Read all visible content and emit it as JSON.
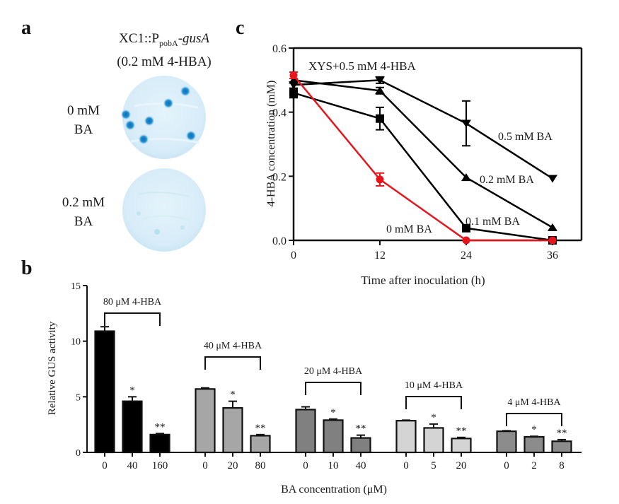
{
  "figure": {
    "panel_labels": {
      "a": "a",
      "b": "b",
      "c": "c"
    }
  },
  "panel_a": {
    "title_prefix": "XC1::P",
    "title_subscript": "pobA",
    "title_dash": "-",
    "title_gene": "gusA",
    "title_line2": "(0.2 mM 4-HBA)",
    "plates": [
      {
        "label_line1": "0 mM",
        "label_line2": "BA",
        "blue_colonies": 7
      },
      {
        "label_line1": "0.2 mM",
        "label_line2": "BA",
        "blue_colonies": 0
      }
    ],
    "colors": {
      "plate": "#d9eef8",
      "colony": "#1e8fd0"
    }
  },
  "chart_data": [
    {
      "id": "panel_b",
      "type": "bar",
      "title": "",
      "xlabel": "BA concentration (μM)",
      "ylabel": "Relative GUS activity",
      "ylim": [
        0,
        15
      ],
      "yticks": [
        0,
        5,
        10,
        15
      ],
      "grid": false,
      "groups": [
        {
          "name": "80 μM 4-HBA",
          "color": "#000000",
          "categories": [
            "0",
            "40",
            "160"
          ],
          "values": [
            10.9,
            4.6,
            1.6
          ],
          "errors": [
            0.4,
            0.4,
            0.1
          ],
          "significance": [
            "",
            "*",
            "**"
          ]
        },
        {
          "name": "40 μM 4-HBA",
          "color": "#a6a6a6",
          "categories": [
            "0",
            "20",
            "80"
          ],
          "values": [
            5.7,
            4.0,
            1.5
          ],
          "errors": [
            0.1,
            0.6,
            0.1
          ],
          "significance": [
            "",
            "*",
            "**"
          ]
        },
        {
          "name": "20 μM 4-HBA",
          "color": "#808080",
          "categories": [
            "0",
            "10",
            "40"
          ],
          "values": [
            3.85,
            2.9,
            1.3
          ],
          "errors": [
            0.25,
            0.1,
            0.25
          ],
          "significance": [
            "",
            "*",
            "**"
          ]
        },
        {
          "name": "10 μM 4-HBA",
          "color": "#d4d4d4",
          "categories": [
            "0",
            "5",
            "20"
          ],
          "values": [
            2.85,
            2.2,
            1.25
          ],
          "errors": [
            0.05,
            0.35,
            0.1
          ],
          "significance": [
            "",
            "*",
            "**"
          ]
        },
        {
          "name": "4 μM 4-HBA",
          "color": "#8c8c8c",
          "categories": [
            "0",
            "2",
            "8"
          ],
          "values": [
            1.9,
            1.4,
            1.0
          ],
          "errors": [
            0.05,
            0.05,
            0.15
          ],
          "significance": [
            "",
            "*",
            "**"
          ]
        }
      ]
    },
    {
      "id": "panel_c",
      "type": "line",
      "title": "",
      "annotation": "XYS+0.5 mM 4-HBA",
      "xlabel": "Time after inoculation (h)",
      "ylabel": "4-HBA concentration (mM)",
      "x": [
        0,
        12,
        24,
        36
      ],
      "xlim": [
        0,
        40
      ],
      "ylim": [
        0,
        0.6
      ],
      "xticks": [
        0,
        12,
        24,
        36
      ],
      "yticks": [
        "0.0",
        "0.2",
        "0.4",
        "0.6"
      ],
      "grid": false,
      "series": [
        {
          "name": "0 mM BA",
          "marker": "circle",
          "color": "#e8141c",
          "values": [
            0.515,
            0.19,
            0.0,
            0.0
          ],
          "errors": [
            0.01,
            0.02,
            0.0,
            0.0
          ]
        },
        {
          "name": "0.1 mM BA",
          "marker": "square",
          "color": "#000000",
          "values": [
            0.46,
            0.38,
            0.038,
            0.0
          ],
          "errors": [
            0.015,
            0.035,
            0.0,
            0.0
          ]
        },
        {
          "name": "0.2 mM BA",
          "marker": "triangle-up",
          "color": "#000000",
          "values": [
            0.5,
            0.467,
            0.196,
            0.04
          ],
          "errors": [
            0.0,
            0.01,
            0.0,
            0.0
          ]
        },
        {
          "name": "0.5 mM BA",
          "marker": "triangle-down",
          "color": "#000000",
          "values": [
            0.485,
            0.5,
            0.365,
            0.193
          ],
          "errors": [
            0.0,
            0.01,
            0.07,
            0.0
          ]
        }
      ]
    }
  ]
}
